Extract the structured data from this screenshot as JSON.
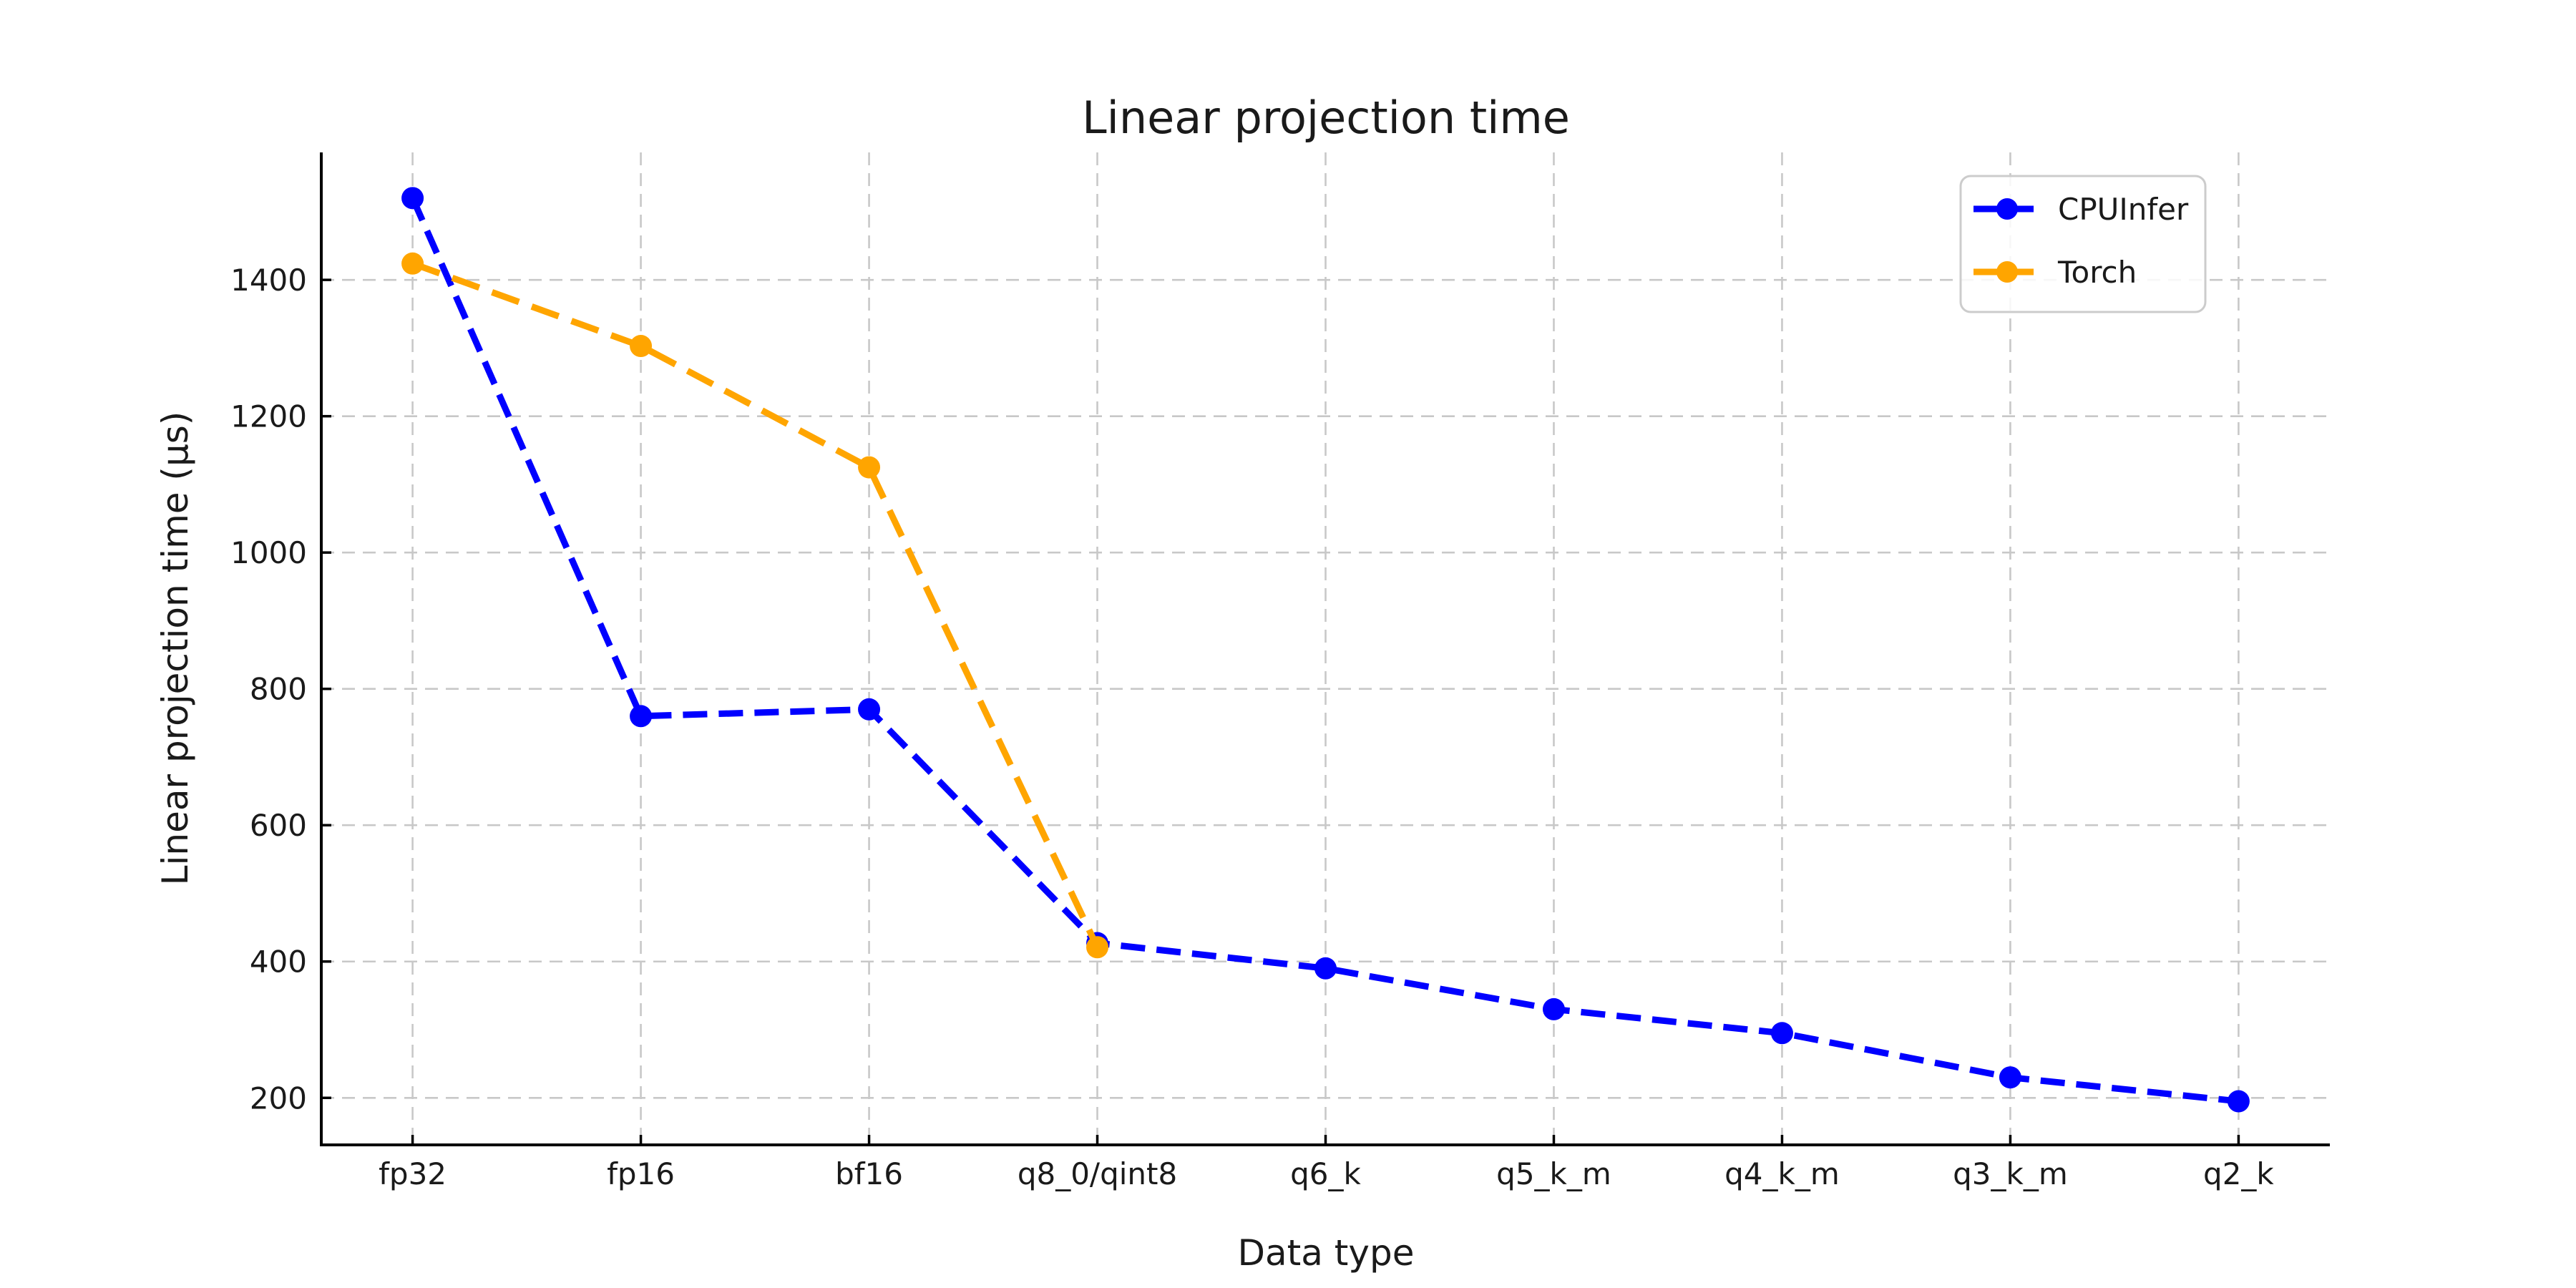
{
  "chart_data": {
    "type": "line",
    "title": "Linear projection time",
    "xlabel": "Data type",
    "ylabel": "Linear projection time (µs)",
    "categories": [
      "fp32",
      "fp16",
      "bf16",
      "q8_0/qint8",
      "q6_k",
      "q5_k_m",
      "q4_k_m",
      "q3_k_m",
      "q2_k"
    ],
    "series": [
      {
        "name": "CPUInfer",
        "color": "#0000ff",
        "line_style": "dashed",
        "marker": "circle",
        "values": [
          1520,
          760,
          770,
          427,
          390,
          330,
          295,
          230,
          195
        ]
      },
      {
        "name": "Torch",
        "color": "#ffa500",
        "line_style": "dashed",
        "marker": "circle",
        "values": [
          1424,
          1303,
          1125,
          421,
          null,
          null,
          null,
          null,
          null
        ]
      }
    ],
    "yticks": [
      200,
      400,
      600,
      800,
      1000,
      1200,
      1400
    ],
    "ylim": [
      131,
      1587
    ],
    "xlim": [
      -0.4,
      8.4
    ],
    "grid": true,
    "grid_style": "dashed",
    "legend_position": "upper right",
    "legend_entries": [
      "CPUInfer",
      "Torch"
    ]
  },
  "colors": {
    "background": "#ffffff",
    "grid": "#c8c8c8",
    "spine": "#000000",
    "text": "#1a1a1a",
    "legend_border": "#cccccc",
    "legend_background": "#ffffff"
  }
}
